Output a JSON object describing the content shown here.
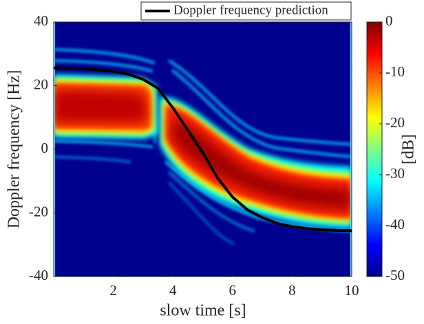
{
  "chart_data": {
    "type": "line",
    "xlabel": "slow time [s]",
    "ylabel": "Doppler frequency [Hz]",
    "xlim": [
      0,
      10
    ],
    "ylim": [
      -40,
      40
    ],
    "xticks": [
      2,
      4,
      6,
      8,
      10
    ],
    "yticks": [
      -40,
      -20,
      0,
      20,
      40
    ],
    "x": [
      0,
      0.5,
      1,
      1.5,
      2,
      2.5,
      3,
      3.5,
      4,
      4.5,
      5,
      5.5,
      6,
      6.5,
      7,
      7.5,
      8,
      8.5,
      9,
      9.5,
      10
    ],
    "series": [
      {
        "name": "Doppler frequency prediction",
        "color": "#000000",
        "values": [
          25.6,
          25.5,
          25.3,
          25.0,
          24.5,
          23.6,
          22.0,
          19.2,
          13,
          6,
          -1,
          -9,
          -15,
          -19,
          -21.5,
          -23.3,
          -24.3,
          -24.9,
          -25.3,
          -25.5,
          -25.6
        ]
      }
    ],
    "colorbar": {
      "label": "[dB]",
      "zlim": [
        -50,
        0
      ],
      "zticks": [
        -50,
        -40,
        -30,
        -20,
        -10,
        0
      ],
      "colors": [
        "#00008f",
        "#0000ff",
        "#0080ff",
        "#00ffff",
        "#80ff80",
        "#ffff00",
        "#ff8000",
        "#ff0000",
        "#800000"
      ]
    }
  }
}
